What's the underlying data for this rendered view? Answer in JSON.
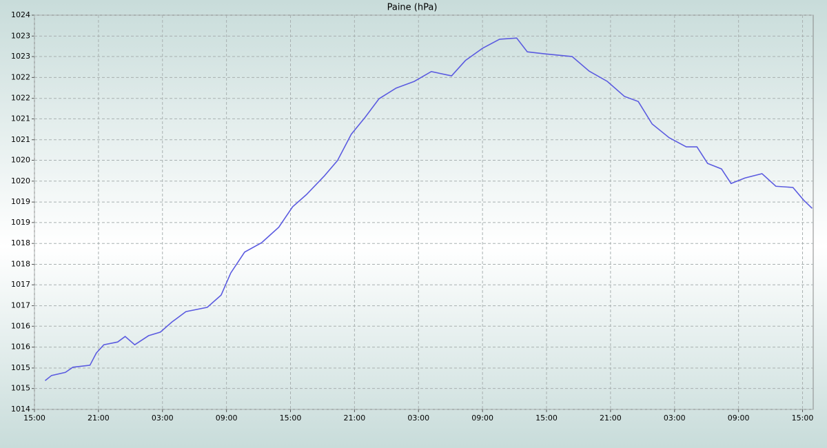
{
  "chart_data": {
    "type": "line",
    "title": "Paine (hPa)",
    "x": [
      1,
      1.6,
      2.9,
      3.6,
      5.2,
      5.8,
      6.5,
      7.8,
      8.5,
      9.4,
      10.7,
      11.8,
      12.9,
      14.2,
      16.2,
      17.5,
      18.4,
      19.7,
      21.3,
      22.9,
      24.2,
      25.5,
      27.2,
      28.4,
      29.7,
      31.0,
      32.3,
      33.9,
      35.6,
      37.2,
      39.1,
      40.4,
      42.0,
      43.6,
      45.2,
      46.2,
      47.8,
      50.4,
      52.0,
      53.7,
      55.3,
      56.6,
      57.9,
      59.5,
      61.1,
      62.1,
      63.1,
      64.4,
      65.3,
      66.6,
      68.2,
      69.5,
      71.1,
      72.1,
      72.9
    ],
    "series": [
      {
        "color": "#5b5be0",
        "values": [
          1014.73,
          1014.86,
          1014.94,
          1015.07,
          1015.12,
          1015.43,
          1015.64,
          1015.71,
          1015.85,
          1015.64,
          1015.87,
          1015.96,
          1016.22,
          1016.48,
          1016.59,
          1016.9,
          1017.46,
          1017.99,
          1018.23,
          1018.62,
          1019.14,
          1019.45,
          1019.93,
          1020.31,
          1020.98,
          1021.41,
          1021.88,
          1022.15,
          1022.32,
          1022.57,
          1022.46,
          1022.85,
          1023.16,
          1023.39,
          1023.42,
          1023.07,
          1023.02,
          1022.95,
          1022.58,
          1022.32,
          1021.94,
          1021.81,
          1021.24,
          1020.89,
          1020.66,
          1020.66,
          1020.24,
          1020.1,
          1019.73,
          1019.87,
          1019.98,
          1019.66,
          1019.63,
          1019.31,
          1019.1
        ]
      }
    ],
    "xlim": [
      0,
      73
    ],
    "xticks": [
      {
        "value": 0,
        "label": "15:00"
      },
      {
        "value": 6,
        "label": "21:00"
      },
      {
        "value": 12,
        "label": "03:00"
      },
      {
        "value": 18,
        "label": "09:00"
      },
      {
        "value": 24,
        "label": "15:00"
      },
      {
        "value": 30,
        "label": "21:00"
      },
      {
        "value": 36,
        "label": "03:00"
      },
      {
        "value": 42,
        "label": "09:00"
      },
      {
        "value": 48,
        "label": "15:00"
      },
      {
        "value": 54,
        "label": "21:00"
      },
      {
        "value": 60,
        "label": "03:00"
      },
      {
        "value": 66,
        "label": "09:00"
      },
      {
        "value": 72,
        "label": "15:00"
      }
    ],
    "ylim": [
      1014,
      1024
    ],
    "yticks": [
      1014,
      {
        "value": 1014.53,
        "label": "1015"
      },
      {
        "value": 1015.05,
        "label": "1015"
      },
      {
        "value": 1015.58,
        "label": "1016"
      },
      {
        "value": 1016.11,
        "label": "1016"
      },
      {
        "value": 1016.63,
        "label": "1017"
      },
      {
        "value": 1017.16,
        "label": "1017"
      },
      {
        "value": 1017.68,
        "label": "1018"
      },
      {
        "value": 1018.21,
        "label": "1018"
      },
      {
        "value": 1018.74,
        "label": "1019"
      },
      {
        "value": 1019.26,
        "label": "1019"
      },
      {
        "value": 1019.79,
        "label": "1020"
      },
      {
        "value": 1020.32,
        "label": "1020"
      },
      {
        "value": 1020.84,
        "label": "1021"
      },
      {
        "value": 1021.37,
        "label": "1021"
      },
      {
        "value": 1021.89,
        "label": "1022"
      },
      {
        "value": 1022.42,
        "label": "1022"
      },
      {
        "value": 1022.95,
        "label": "1023"
      },
      {
        "value": 1023.47,
        "label": "1023"
      },
      1024
    ],
    "grid": true
  }
}
